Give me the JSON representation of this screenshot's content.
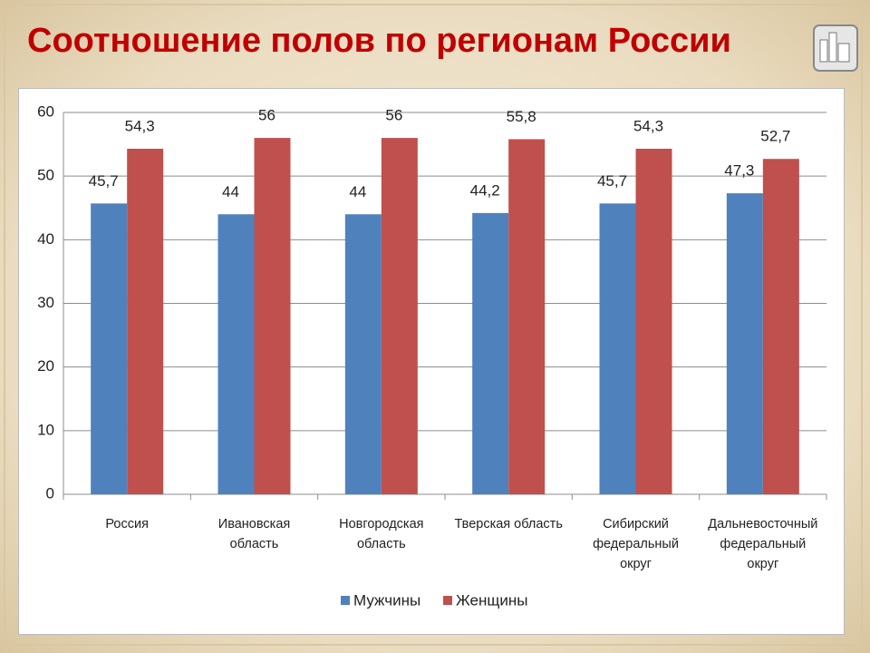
{
  "chart_data": {
    "type": "bar",
    "title": "Соотношение полов по регионам России",
    "categories": [
      "Россия",
      "Ивановская область",
      "Новгородская область",
      "Тверская область",
      "Сибирский федеральный округ",
      "Дальневосточный федеральный округ"
    ],
    "series": [
      {
        "name": "Мужчины",
        "color": "#4f81bd",
        "values": [
          45.7,
          44,
          44,
          44.2,
          45.7,
          47.3
        ],
        "value_labels": [
          "45,7",
          "44",
          "44",
          "44,2",
          "45,7",
          "47,3"
        ]
      },
      {
        "name": "Женщины",
        "color": "#c0504d",
        "values": [
          54.3,
          56,
          56,
          55.8,
          54.3,
          52.7
        ],
        "value_labels": [
          "54,3",
          "56",
          "56",
          "55,8",
          "54,3",
          "52,7"
        ]
      }
    ],
    "ylim": [
      0,
      60
    ],
    "yticks": [
      0,
      10,
      20,
      30,
      40,
      50,
      60
    ],
    "grid": true,
    "legend": "bottom"
  }
}
